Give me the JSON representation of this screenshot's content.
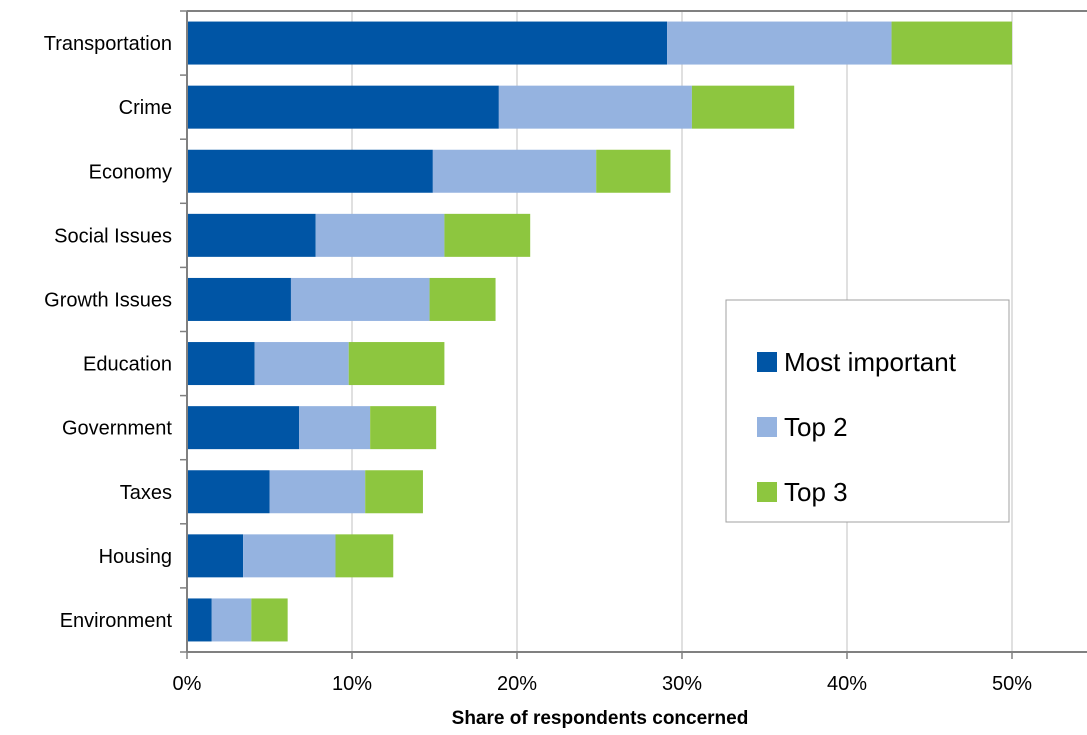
{
  "chart_data": {
    "type": "bar",
    "orientation": "horizontal",
    "stacked": true,
    "title": "",
    "xlabel": "Share of respondents concerned",
    "ylabel": "",
    "xlim": [
      0,
      0.55
    ],
    "x_ticks": [
      0,
      0.1,
      0.2,
      0.3,
      0.4,
      0.5
    ],
    "x_tick_labels": [
      "0%",
      "10%",
      "20%",
      "30%",
      "40%",
      "50%"
    ],
    "grid": "vertical",
    "legend_position": "right",
    "categories": [
      "Transportation",
      "Crime",
      "Economy",
      "Social Issues",
      "Growth Issues",
      "Education",
      "Government",
      "Taxes",
      "Housing",
      "Environment"
    ],
    "series": [
      {
        "name": "Most important",
        "color": "#0055a5",
        "values": [
          0.291,
          0.189,
          0.149,
          0.078,
          0.063,
          0.041,
          0.068,
          0.05,
          0.034,
          0.015
        ]
      },
      {
        "name": "Top 2",
        "color": "#95b3e0",
        "values": [
          0.136,
          0.117,
          0.099,
          0.078,
          0.084,
          0.057,
          0.043,
          0.058,
          0.056,
          0.024
        ]
      },
      {
        "name": "Top 3",
        "color": "#8dc63f",
        "values": [
          0.073,
          0.062,
          0.045,
          0.052,
          0.04,
          0.058,
          0.04,
          0.035,
          0.035,
          0.022
        ]
      }
    ]
  }
}
